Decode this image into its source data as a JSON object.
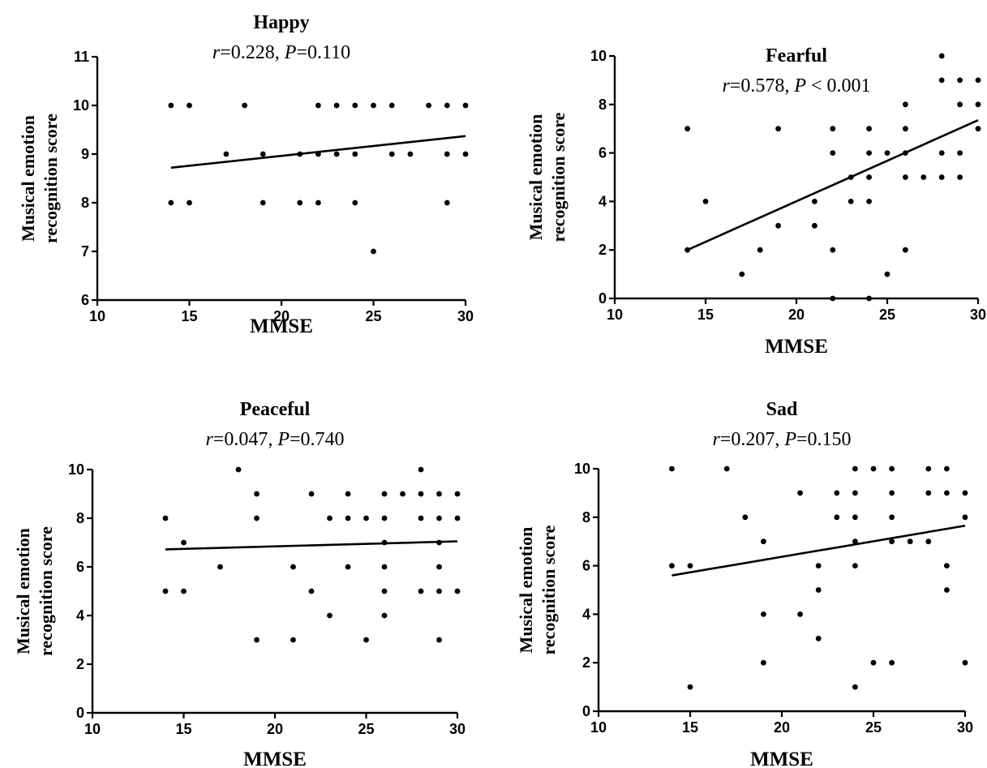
{
  "chart_data": [
    {
      "type": "scatter",
      "title": "Happy",
      "subtitle": {
        "r_sym": "r",
        "r_val": "=0.228, ",
        "p_sym": "P",
        "p_val": "=0.110"
      },
      "xlabel": "MMSE",
      "ylabel": [
        "Musical emotion",
        "recognition score"
      ],
      "xlim": [
        10,
        30
      ],
      "ylim": [
        6,
        11
      ],
      "xticks": [
        10,
        15,
        20,
        25,
        30
      ],
      "yticks": [
        6,
        7,
        8,
        9,
        10,
        11
      ],
      "points": [
        [
          14,
          10
        ],
        [
          14,
          8
        ],
        [
          15,
          10
        ],
        [
          15,
          8
        ],
        [
          17,
          9
        ],
        [
          18,
          10
        ],
        [
          19,
          9
        ],
        [
          19,
          8
        ],
        [
          21,
          9
        ],
        [
          21,
          8
        ],
        [
          22,
          10
        ],
        [
          22,
          9
        ],
        [
          22,
          8
        ],
        [
          23,
          10
        ],
        [
          23,
          9
        ],
        [
          24,
          10
        ],
        [
          24,
          9
        ],
        [
          24,
          8
        ],
        [
          25,
          10
        ],
        [
          25,
          7
        ],
        [
          26,
          10
        ],
        [
          26,
          9
        ],
        [
          27,
          9
        ],
        [
          28,
          10
        ],
        [
          29,
          10
        ],
        [
          29,
          9
        ],
        [
          29,
          8
        ],
        [
          30,
          10
        ],
        [
          30,
          9
        ]
      ],
      "fit_line": {
        "x": [
          14,
          30
        ],
        "y": [
          8.72,
          9.37
        ]
      }
    },
    {
      "type": "scatter",
      "title": "Fearful",
      "subtitle": {
        "r_sym": "r",
        "r_val": "=0.578, ",
        "p_sym": "P",
        "p_val": " < 0.001"
      },
      "xlabel": "MMSE",
      "ylabel": [
        "Musical emotion",
        "recognition score"
      ],
      "xlim": [
        10,
        30
      ],
      "ylim": [
        0,
        10
      ],
      "xticks": [
        10,
        15,
        20,
        25,
        30
      ],
      "yticks": [
        0,
        2,
        4,
        6,
        8,
        10
      ],
      "points": [
        [
          14,
          7
        ],
        [
          14,
          2
        ],
        [
          15,
          4
        ],
        [
          17,
          1
        ],
        [
          18,
          2
        ],
        [
          19,
          7
        ],
        [
          19,
          3
        ],
        [
          21,
          4
        ],
        [
          21,
          3
        ],
        [
          22,
          7
        ],
        [
          22,
          6
        ],
        [
          22,
          2
        ],
        [
          22,
          0
        ],
        [
          23,
          5
        ],
        [
          23,
          4
        ],
        [
          24,
          7
        ],
        [
          24,
          6
        ],
        [
          24,
          5
        ],
        [
          24,
          4
        ],
        [
          24,
          0
        ],
        [
          25,
          6
        ],
        [
          25,
          1
        ],
        [
          26,
          8
        ],
        [
          26,
          7
        ],
        [
          26,
          6
        ],
        [
          26,
          5
        ],
        [
          26,
          2
        ],
        [
          27,
          5
        ],
        [
          28,
          10
        ],
        [
          28,
          9
        ],
        [
          28,
          6
        ],
        [
          28,
          5
        ],
        [
          29,
          9
        ],
        [
          29,
          8
        ],
        [
          29,
          6
        ],
        [
          29,
          5
        ],
        [
          30,
          9
        ],
        [
          30,
          8
        ],
        [
          30,
          7
        ]
      ],
      "fit_line": {
        "x": [
          14,
          30
        ],
        "y": [
          2.0,
          7.35
        ]
      }
    },
    {
      "type": "scatter",
      "title": "Peaceful",
      "subtitle": {
        "r_sym": "r",
        "r_val": "=0.047, ",
        "p_sym": "P",
        "p_val": "=0.740"
      },
      "xlabel": "MMSE",
      "ylabel": [
        "Musical emotion",
        "recognition score"
      ],
      "xlim": [
        10,
        30
      ],
      "ylim": [
        0,
        10
      ],
      "xticks": [
        10,
        15,
        20,
        25,
        30
      ],
      "yticks": [
        0,
        2,
        4,
        6,
        8,
        10
      ],
      "points": [
        [
          14,
          8
        ],
        [
          14,
          5
        ],
        [
          15,
          7
        ],
        [
          15,
          5
        ],
        [
          17,
          6
        ],
        [
          18,
          10
        ],
        [
          19,
          9
        ],
        [
          19,
          8
        ],
        [
          19,
          3
        ],
        [
          21,
          6
        ],
        [
          21,
          3
        ],
        [
          22,
          9
        ],
        [
          22,
          5
        ],
        [
          23,
          8
        ],
        [
          23,
          4
        ],
        [
          24,
          9
        ],
        [
          24,
          8
        ],
        [
          24,
          6
        ],
        [
          25,
          8
        ],
        [
          25,
          3
        ],
        [
          26,
          9
        ],
        [
          26,
          8
        ],
        [
          26,
          7
        ],
        [
          26,
          6
        ],
        [
          26,
          5
        ],
        [
          26,
          4
        ],
        [
          27,
          9
        ],
        [
          28,
          10
        ],
        [
          28,
          9
        ],
        [
          28,
          8
        ],
        [
          28,
          5
        ],
        [
          29,
          9
        ],
        [
          29,
          8
        ],
        [
          29,
          7
        ],
        [
          29,
          6
        ],
        [
          29,
          5
        ],
        [
          29,
          3
        ],
        [
          30,
          9
        ],
        [
          30,
          8
        ],
        [
          30,
          5
        ]
      ],
      "fit_line": {
        "x": [
          14,
          30
        ],
        "y": [
          6.72,
          7.05
        ]
      }
    },
    {
      "type": "scatter",
      "title": "Sad",
      "subtitle": {
        "r_sym": "r",
        "r_val": "=0.207, ",
        "p_sym": "P",
        "p_val": "=0.150"
      },
      "xlabel": "MMSE",
      "ylabel": [
        "Musical emotion",
        "recognition score"
      ],
      "xlim": [
        10,
        30
      ],
      "ylim": [
        0,
        10
      ],
      "xticks": [
        10,
        15,
        20,
        25,
        30
      ],
      "yticks": [
        0,
        2,
        4,
        6,
        8,
        10
      ],
      "points": [
        [
          14,
          10
        ],
        [
          14,
          6
        ],
        [
          15,
          6
        ],
        [
          15,
          1
        ],
        [
          17,
          10
        ],
        [
          18,
          8
        ],
        [
          19,
          7
        ],
        [
          19,
          4
        ],
        [
          19,
          2
        ],
        [
          21,
          9
        ],
        [
          21,
          4
        ],
        [
          22,
          6
        ],
        [
          22,
          5
        ],
        [
          22,
          3
        ],
        [
          23,
          9
        ],
        [
          23,
          8
        ],
        [
          24,
          10
        ],
        [
          24,
          9
        ],
        [
          24,
          8
        ],
        [
          24,
          7
        ],
        [
          24,
          6
        ],
        [
          24,
          1
        ],
        [
          25,
          10
        ],
        [
          25,
          2
        ],
        [
          26,
          10
        ],
        [
          26,
          9
        ],
        [
          26,
          8
        ],
        [
          26,
          7
        ],
        [
          26,
          2
        ],
        [
          27,
          7
        ],
        [
          28,
          10
        ],
        [
          28,
          9
        ],
        [
          28,
          7
        ],
        [
          29,
          10
        ],
        [
          29,
          9
        ],
        [
          29,
          6
        ],
        [
          29,
          5
        ],
        [
          30,
          9
        ],
        [
          30,
          8
        ],
        [
          30,
          2
        ]
      ],
      "fit_line": {
        "x": [
          14,
          30
        ],
        "y": [
          5.6,
          7.65
        ]
      }
    }
  ]
}
